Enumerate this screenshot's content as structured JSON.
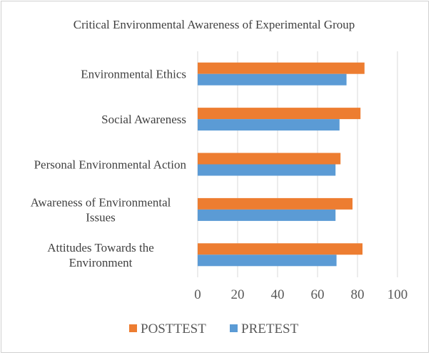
{
  "chart_data": {
    "type": "bar",
    "orientation": "horizontal",
    "title": "Critical Environmental Awareness of Experimental Group",
    "categories": [
      "Attitudes Towards the Environment",
      "Awareness of Environmental Issues",
      "Personal Environmental Action",
      "Social Awareness",
      "Environmental Ethics"
    ],
    "category_lines": [
      [
        "Attitudes Towards the",
        "Environment"
      ],
      [
        "Awareness of Environmental",
        "Issues"
      ],
      [
        "Personal Environmental Action"
      ],
      [
        "Social Awareness"
      ],
      [
        "Environmental Ethics"
      ]
    ],
    "series": [
      {
        "name": "PRETEST",
        "color": "#5b9bd5",
        "values": [
          69.5,
          69,
          69,
          71,
          74.5
        ]
      },
      {
        "name": "POSTTEST",
        "color": "#ed7d31",
        "values": [
          82.5,
          77.5,
          71.5,
          81.5,
          83.5
        ]
      }
    ],
    "xlim": [
      0,
      100
    ],
    "xticks": [
      0,
      20,
      40,
      60,
      80,
      100
    ],
    "grid": true,
    "legend": {
      "position": "bottom",
      "order": [
        "POSTTEST",
        "PRETEST"
      ]
    }
  }
}
